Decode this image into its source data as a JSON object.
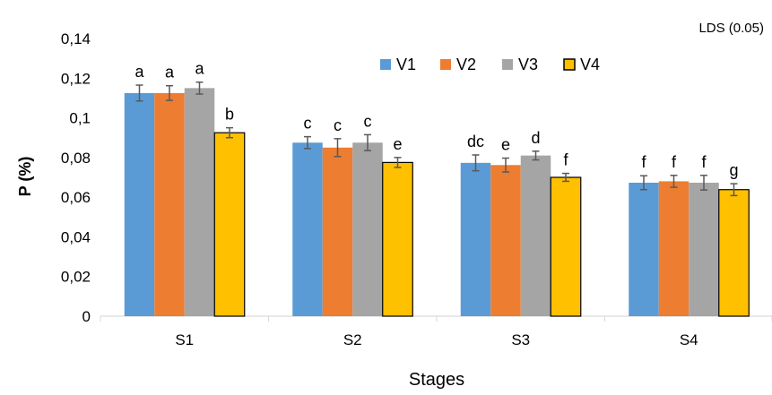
{
  "chart_data": {
    "type": "bar",
    "note": "LDS (0.05)",
    "xlabel": "Stages",
    "ylabel": "P (%)",
    "ylim": [
      0,
      0.14
    ],
    "yticks": [
      "0",
      "0,02",
      "0,04",
      "0,06",
      "0,08",
      "0,1",
      "0,12",
      "0,14"
    ],
    "ytick_values": [
      0,
      0.02,
      0.04,
      0.06,
      0.08,
      0.1,
      0.12,
      0.14
    ],
    "categories": [
      "S1",
      "S2",
      "S3",
      "S4"
    ],
    "grid": false,
    "legend_position": "top-right",
    "series": [
      {
        "name": "V1",
        "color": "#5B9BD5",
        "values": [
          0.1125,
          0.0875,
          0.0773,
          0.0673
        ],
        "errors": [
          0.004,
          0.003,
          0.004,
          0.0035
        ],
        "labels": [
          "a",
          "c",
          "dc",
          "f"
        ]
      },
      {
        "name": "V2",
        "color": "#ED7D31",
        "values": [
          0.1125,
          0.085,
          0.0762,
          0.068
        ],
        "errors": [
          0.0037,
          0.0045,
          0.0035,
          0.003
        ],
        "labels": [
          "a",
          "c",
          "e",
          "f"
        ]
      },
      {
        "name": "V3",
        "color": "#A5A5A5",
        "values": [
          0.115,
          0.0875,
          0.081,
          0.0673
        ],
        "errors": [
          0.003,
          0.004,
          0.0022,
          0.0037
        ],
        "labels": [
          "a",
          "c",
          "d",
          "f"
        ]
      },
      {
        "name": "V4",
        "color": "#FFC000",
        "border": "#000000",
        "values": [
          0.0925,
          0.0775,
          0.07,
          0.0638
        ],
        "errors": [
          0.0025,
          0.0025,
          0.002,
          0.003
        ],
        "labels": [
          "b",
          "e",
          "f",
          "g"
        ]
      }
    ]
  }
}
